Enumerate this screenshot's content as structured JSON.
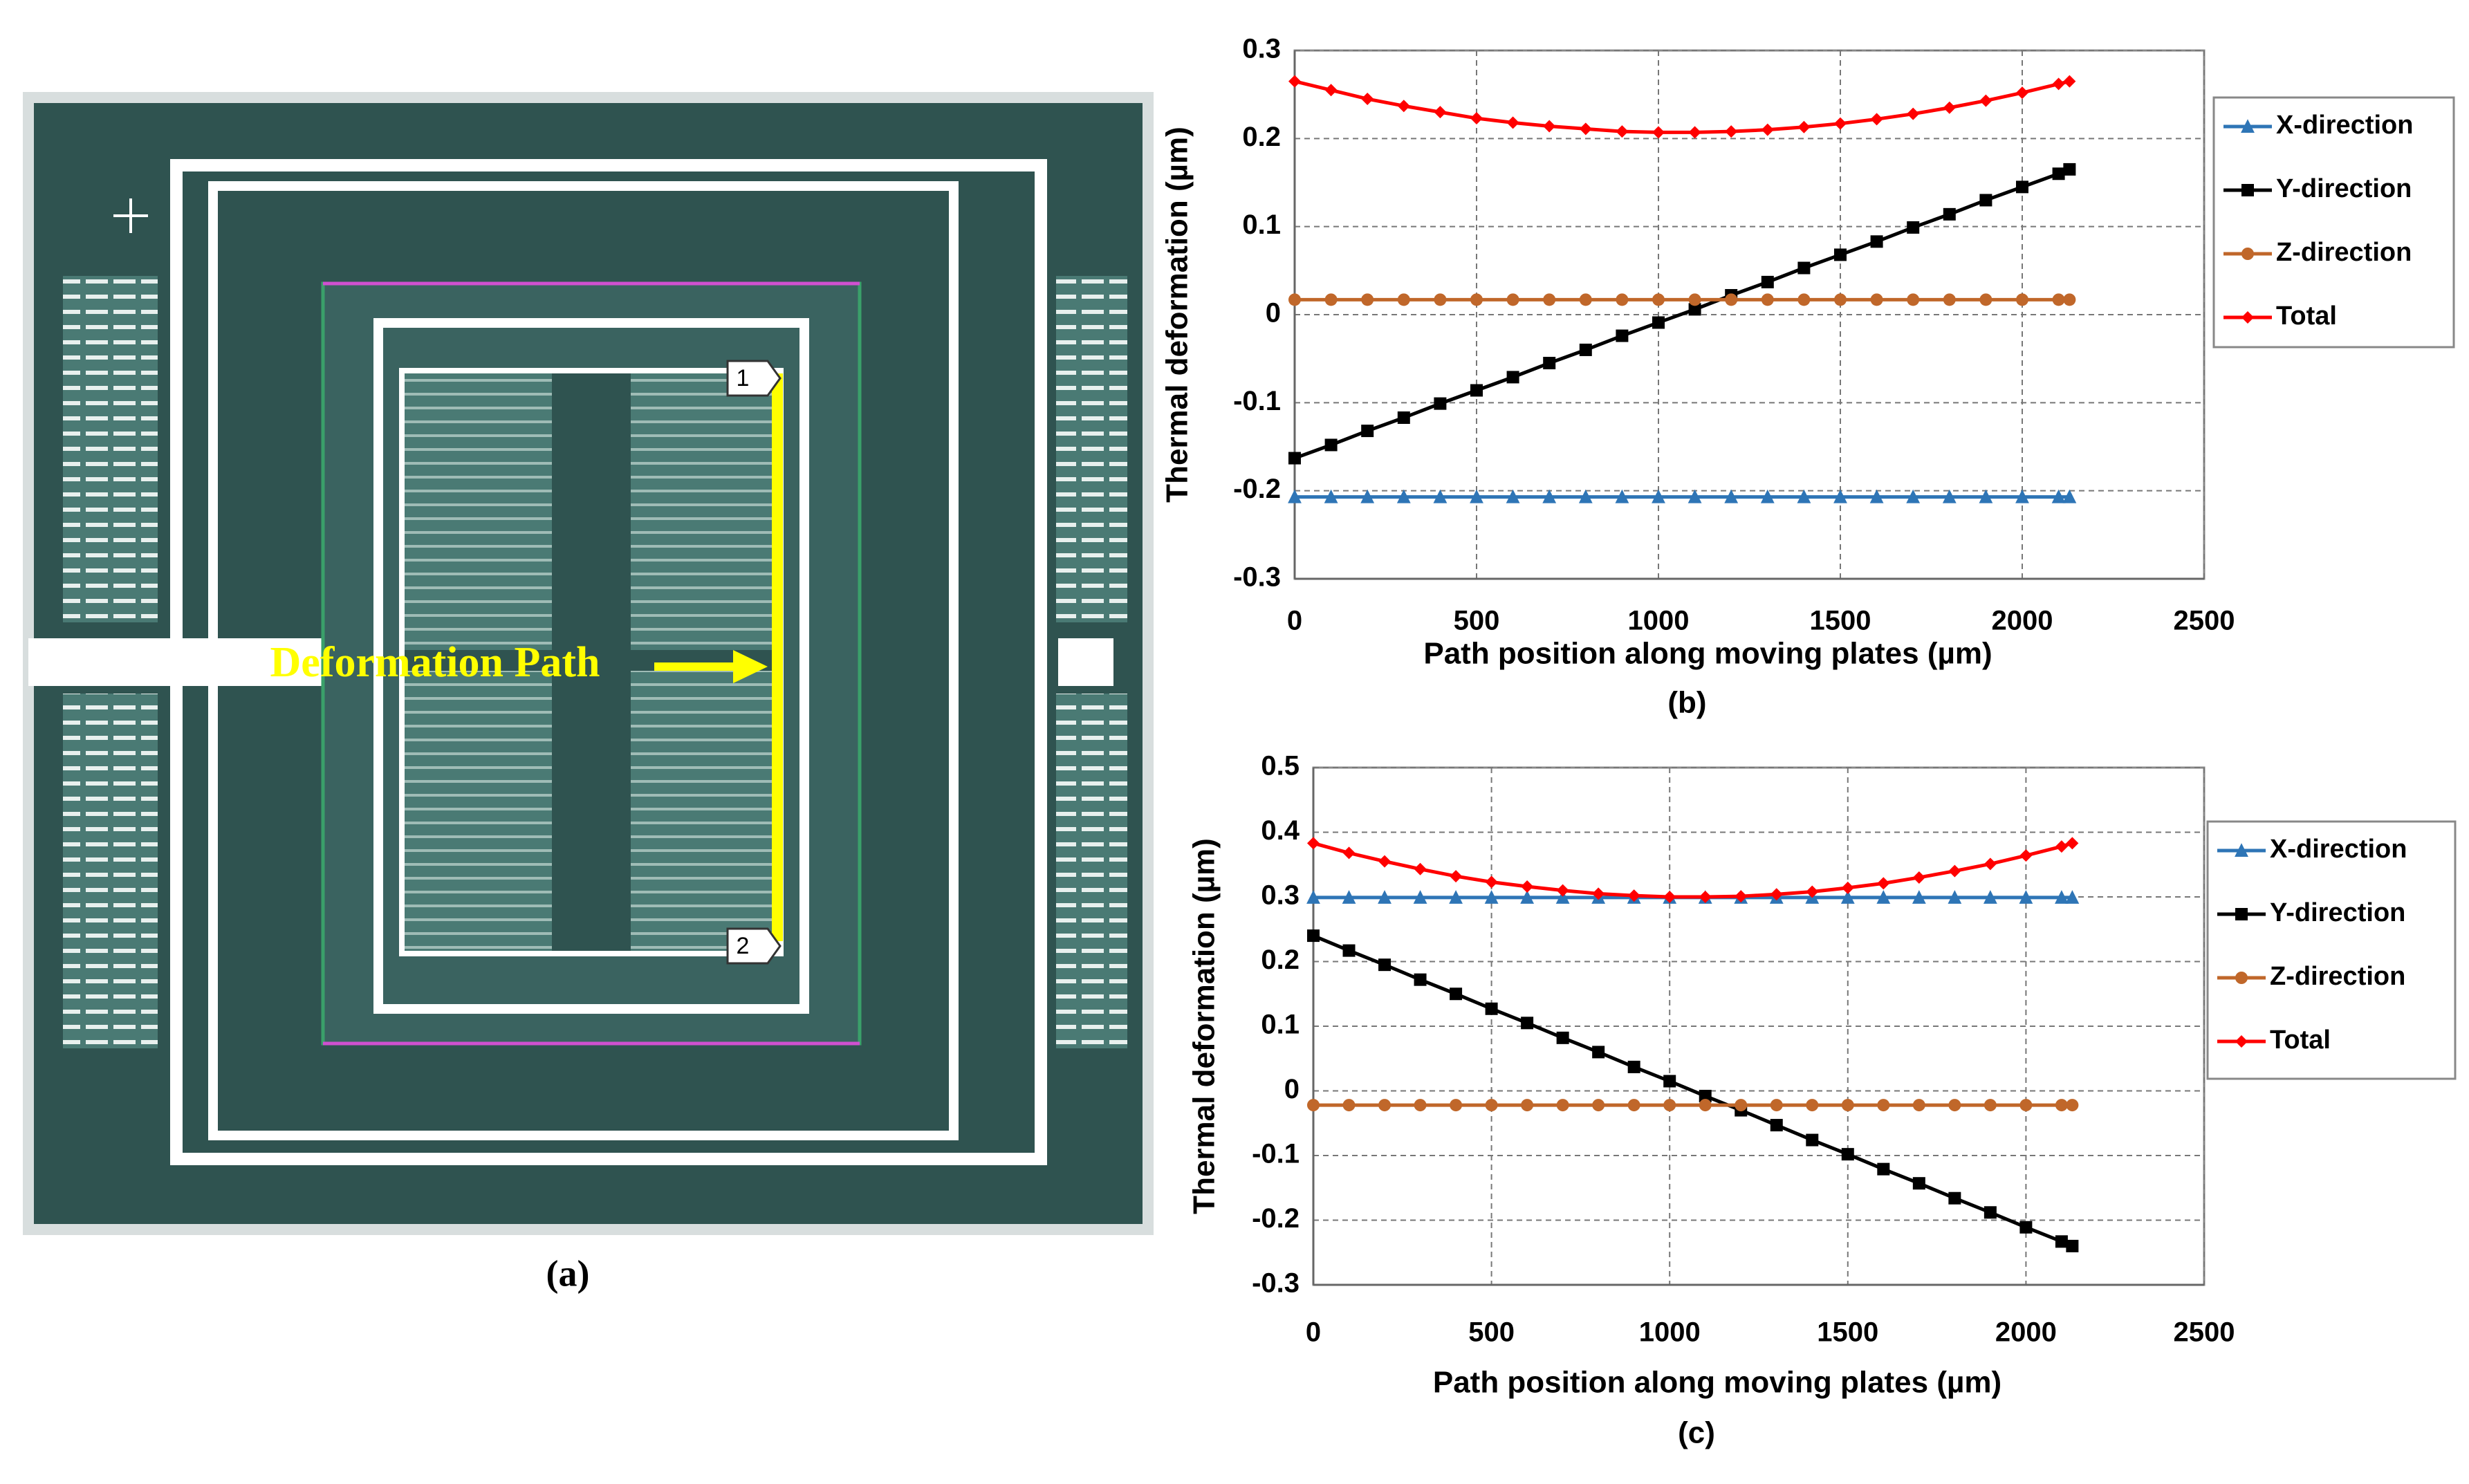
{
  "figure_a": {
    "annotation": "Deformation Path",
    "markers": [
      "1",
      "2"
    ],
    "caption": "(a)"
  },
  "chart_data": [
    {
      "type": "line",
      "caption": "(b)",
      "x_label": "Path position along moving plates (µm)",
      "y_label": "Thermal deformation (µm)",
      "x": [
        0,
        100,
        200,
        300,
        400,
        500,
        600,
        700,
        800,
        900,
        1000,
        1100,
        1200,
        1300,
        1400,
        1500,
        1600,
        1700,
        1800,
        1900,
        2000,
        2100,
        2130
      ],
      "xlim": [
        0,
        2500
      ],
      "xticks": [
        0,
        500,
        1000,
        1500,
        2000,
        2500
      ],
      "ylim": [
        -0.3,
        0.3
      ],
      "yticks": [
        -0.3,
        -0.2,
        -0.1,
        0,
        0.1,
        0.2,
        0.3
      ],
      "grid": true,
      "legend": "right",
      "series": [
        {
          "name": "X-direction",
          "color": "#2e75b6",
          "marker": "triangle",
          "values": [
            -0.207,
            -0.207,
            -0.207,
            -0.207,
            -0.207,
            -0.207,
            -0.207,
            -0.207,
            -0.207,
            -0.207,
            -0.207,
            -0.207,
            -0.207,
            -0.207,
            -0.207,
            -0.207,
            -0.207,
            -0.207,
            -0.207,
            -0.207,
            -0.207,
            -0.207,
            -0.207
          ]
        },
        {
          "name": "Y-direction",
          "color": "#000000",
          "marker": "square",
          "values": [
            -0.163,
            -0.148,
            -0.132,
            -0.117,
            -0.101,
            -0.086,
            -0.071,
            -0.055,
            -0.04,
            -0.024,
            -0.009,
            0.006,
            0.022,
            0.037,
            0.053,
            0.068,
            0.083,
            0.099,
            0.114,
            0.13,
            0.145,
            0.16,
            0.165
          ]
        },
        {
          "name": "Z-direction",
          "color": "#c0672a",
          "marker": "circle",
          "values": [
            0.017,
            0.017,
            0.017,
            0.017,
            0.017,
            0.017,
            0.017,
            0.017,
            0.017,
            0.017,
            0.017,
            0.017,
            0.017,
            0.017,
            0.017,
            0.017,
            0.017,
            0.017,
            0.017,
            0.017,
            0.017,
            0.017,
            0.017
          ]
        },
        {
          "name": "Total",
          "color": "#ff0000",
          "marker": "diamond",
          "values": [
            0.265,
            0.255,
            0.245,
            0.237,
            0.23,
            0.223,
            0.218,
            0.214,
            0.211,
            0.208,
            0.207,
            0.207,
            0.208,
            0.21,
            0.213,
            0.217,
            0.222,
            0.228,
            0.235,
            0.243,
            0.252,
            0.262,
            0.265
          ]
        }
      ]
    },
    {
      "type": "line",
      "caption": "(c)",
      "x_label": "Path position along moving plates (µm)",
      "y_label": "Thermal deformation (µm)",
      "x": [
        0,
        100,
        200,
        300,
        400,
        500,
        600,
        700,
        800,
        900,
        1000,
        1100,
        1200,
        1300,
        1400,
        1500,
        1600,
        1700,
        1800,
        1900,
        2000,
        2100,
        2130
      ],
      "xlim": [
        0,
        2500
      ],
      "xticks": [
        0,
        500,
        1000,
        1500,
        2000,
        2500
      ],
      "ylim": [
        -0.3,
        0.5
      ],
      "yticks": [
        -0.3,
        -0.2,
        -0.1,
        0,
        0.1,
        0.2,
        0.3,
        0.4,
        0.5
      ],
      "grid": true,
      "legend": "right",
      "series": [
        {
          "name": "X-direction",
          "color": "#2e75b6",
          "marker": "triangle",
          "values": [
            0.299,
            0.299,
            0.299,
            0.299,
            0.299,
            0.299,
            0.299,
            0.299,
            0.299,
            0.299,
            0.299,
            0.299,
            0.299,
            0.299,
            0.299,
            0.299,
            0.299,
            0.299,
            0.299,
            0.299,
            0.299,
            0.299,
            0.299
          ]
        },
        {
          "name": "Y-direction",
          "color": "#000000",
          "marker": "square",
          "values": [
            0.24,
            0.217,
            0.195,
            0.172,
            0.15,
            0.127,
            0.105,
            0.082,
            0.06,
            0.037,
            0.015,
            -0.008,
            -0.03,
            -0.053,
            -0.076,
            -0.098,
            -0.121,
            -0.143,
            -0.166,
            -0.188,
            -0.211,
            -0.233,
            -0.24
          ]
        },
        {
          "name": "Z-direction",
          "color": "#c0672a",
          "marker": "circle",
          "values": [
            -0.022,
            -0.022,
            -0.022,
            -0.022,
            -0.022,
            -0.022,
            -0.022,
            -0.022,
            -0.022,
            -0.022,
            -0.022,
            -0.022,
            -0.022,
            -0.022,
            -0.022,
            -0.022,
            -0.022,
            -0.022,
            -0.022,
            -0.022,
            -0.022,
            -0.022,
            -0.022
          ]
        },
        {
          "name": "Total",
          "color": "#ff0000",
          "marker": "diamond",
          "values": [
            0.383,
            0.368,
            0.355,
            0.343,
            0.332,
            0.323,
            0.316,
            0.31,
            0.305,
            0.302,
            0.3,
            0.3,
            0.301,
            0.304,
            0.308,
            0.314,
            0.321,
            0.33,
            0.34,
            0.351,
            0.364,
            0.378,
            0.383
          ]
        }
      ]
    }
  ]
}
